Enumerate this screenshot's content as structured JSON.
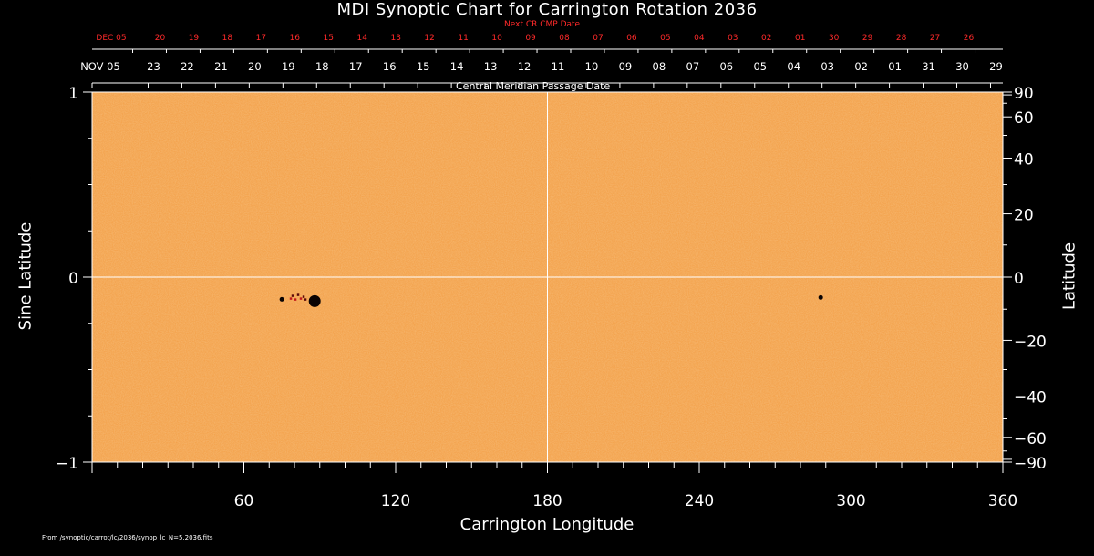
{
  "colors": {
    "background": "#000000",
    "map_fill": "#f3a24c",
    "axis": "#ffffff",
    "next_cr": "#ff2a2a",
    "sunspot": "#0a0303"
  },
  "chart_data": {
    "type": "heatmap",
    "title": "MDI Synoptic Chart for Carrington Rotation 2036",
    "xlabel": "Carrington Longitude",
    "ylabel_left": "Sine Latitude",
    "ylabel_right": "Latitude",
    "top_axis_label": "Central Meridian Passage Date",
    "next_cr_label": "Next CR CMP Date",
    "xlim": [
      0,
      360
    ],
    "ylim": [
      -1,
      1
    ],
    "x_ticks": [
      60,
      120,
      180,
      240,
      300,
      360
    ],
    "x_tick_labels": [
      "60",
      "120",
      "180",
      "240",
      "300",
      "360"
    ],
    "y_ticks_left": [
      1,
      0,
      -1
    ],
    "y_tick_labels_left": [
      "1",
      "0",
      "−1"
    ],
    "latitude_ticks": [
      90,
      60,
      40,
      20,
      0,
      -20,
      -40,
      -60,
      -90
    ],
    "latitude_tick_labels": [
      "90",
      "60",
      "40",
      "20",
      "0",
      "−20",
      "−40",
      "−60",
      "−90"
    ],
    "cmp_dates": [
      "NOV 05",
      "23",
      "22",
      "21",
      "20",
      "19",
      "18",
      "17",
      "16",
      "15",
      "14",
      "13",
      "12",
      "11",
      "10",
      "09",
      "08",
      "07",
      "06",
      "05",
      "04",
      "03",
      "02",
      "01",
      "31",
      "30",
      "29"
    ],
    "next_cr_dates": [
      "DEC 05",
      "20",
      "19",
      "18",
      "17",
      "16",
      "15",
      "14",
      "13",
      "12",
      "11",
      "10",
      "09",
      "08",
      "07",
      "06",
      "05",
      "04",
      "03",
      "02",
      "01",
      "30",
      "29",
      "28",
      "27",
      "26"
    ],
    "features": [
      {
        "name": "large sunspot",
        "longitude": 88,
        "sine_latitude": -0.13
      },
      {
        "name": "small spot",
        "longitude": 75,
        "sine_latitude": -0.12
      },
      {
        "name": "plage group",
        "longitude": 81,
        "sine_latitude": -0.11
      },
      {
        "name": "tiny spot",
        "longitude": 288,
        "sine_latitude": -0.11
      }
    ]
  },
  "source_note": "From /synoptic/carrot/lc/2036/synop_lc_N=5.2036.fits"
}
